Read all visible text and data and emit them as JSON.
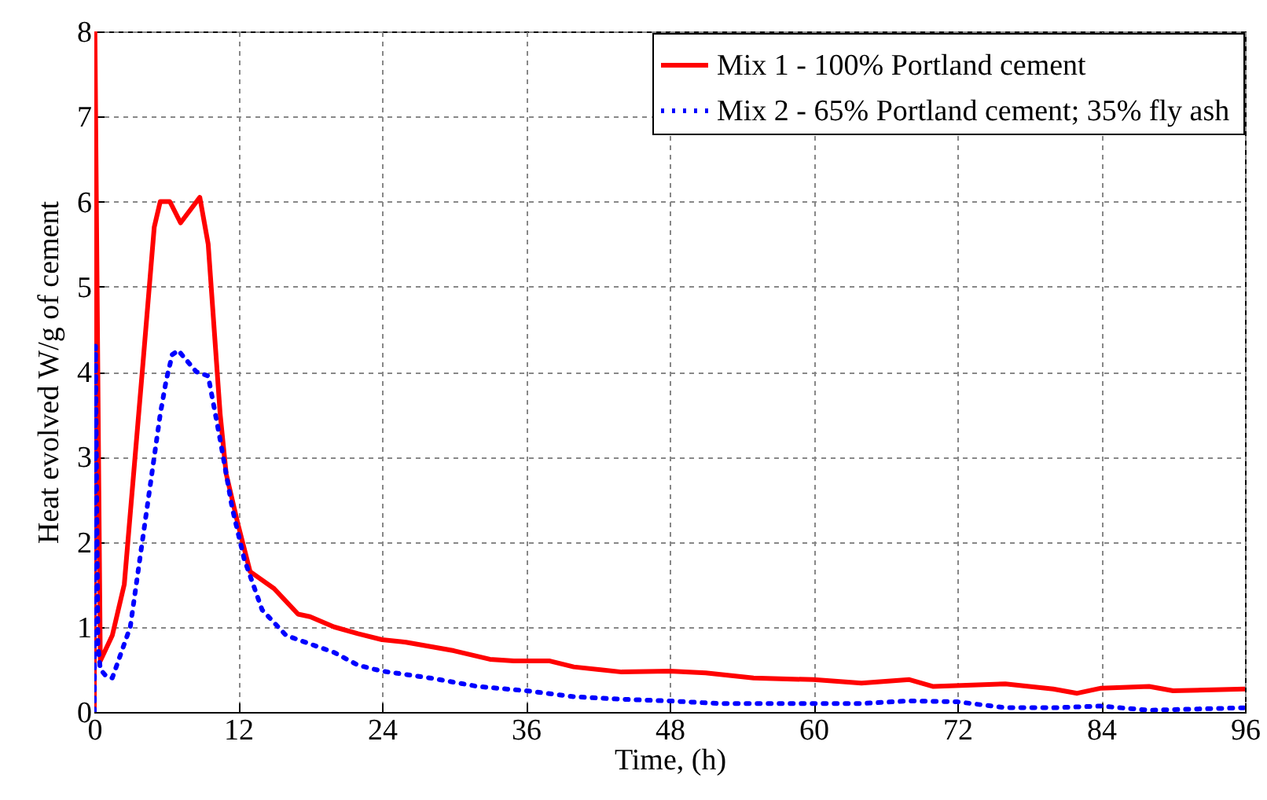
{
  "chart_data": {
    "type": "line",
    "xlabel": "Time, (h)",
    "ylabel": "Heat  evolved W/g of cement",
    "xlim": [
      0,
      96
    ],
    "xticks": [
      0,
      12,
      24,
      36,
      48,
      60,
      72,
      84,
      96
    ],
    "ylim": [
      0,
      8
    ],
    "yticks": [
      0,
      1,
      2,
      3,
      4,
      5,
      6,
      7,
      8
    ],
    "grid": true,
    "legend": "top right",
    "series": [
      {
        "name": "Mix 1 - 100% Portland cement",
        "color": "#ff0000",
        "line_style": "solid",
        "x": [
          0,
          0.05,
          0.5,
          1.5,
          2.5,
          4,
          5,
          5.5,
          6.3,
          7.2,
          8.8,
          9.5,
          10.5,
          11,
          12,
          13,
          15,
          17,
          18,
          20,
          22,
          24,
          26,
          30,
          33,
          35,
          38,
          40,
          44,
          48,
          51,
          55,
          60,
          64,
          66,
          68,
          70,
          76,
          80,
          82,
          84,
          88,
          90,
          96
        ],
        "values": [
          0,
          8,
          0.6,
          0.9,
          1.5,
          4,
          5.7,
          6.0,
          6.0,
          5.75,
          6.05,
          5.5,
          3.5,
          2.8,
          2.2,
          1.65,
          1.45,
          1.15,
          1.12,
          1.0,
          0.92,
          0.85,
          0.82,
          0.72,
          0.62,
          0.6,
          0.6,
          0.53,
          0.47,
          0.48,
          0.46,
          0.4,
          0.38,
          0.34,
          0.36,
          0.38,
          0.3,
          0.33,
          0.27,
          0.22,
          0.28,
          0.3,
          0.25,
          0.27
        ]
      },
      {
        "name": "Mix 2 - 65%  Portland cement; 35% fly ash",
        "color": "#0000ff",
        "line_style": "dotted",
        "x": [
          0,
          0.1,
          0.2,
          0.3,
          0.5,
          1,
          1.5,
          2,
          3,
          4,
          5,
          5.5,
          6,
          6.5,
          7,
          8.5,
          9.5,
          10.5,
          11.5,
          12.5,
          14,
          16,
          18,
          20,
          22,
          24,
          28,
          32,
          36,
          40,
          44,
          48,
          52,
          60,
          64,
          68,
          72,
          76,
          80,
          84,
          88,
          96
        ],
        "values": [
          0,
          4.3,
          2.5,
          0.8,
          0.5,
          0.42,
          0.4,
          0.6,
          1.0,
          2.0,
          3.0,
          3.5,
          3.9,
          4.2,
          4.25,
          4.0,
          3.95,
          3.2,
          2.4,
          1.8,
          1.2,
          0.9,
          0.8,
          0.7,
          0.55,
          0.48,
          0.4,
          0.3,
          0.25,
          0.18,
          0.15,
          0.13,
          0.1,
          0.1,
          0.1,
          0.13,
          0.12,
          0.05,
          0.05,
          0.07,
          0.02,
          0.05
        ]
      }
    ]
  }
}
